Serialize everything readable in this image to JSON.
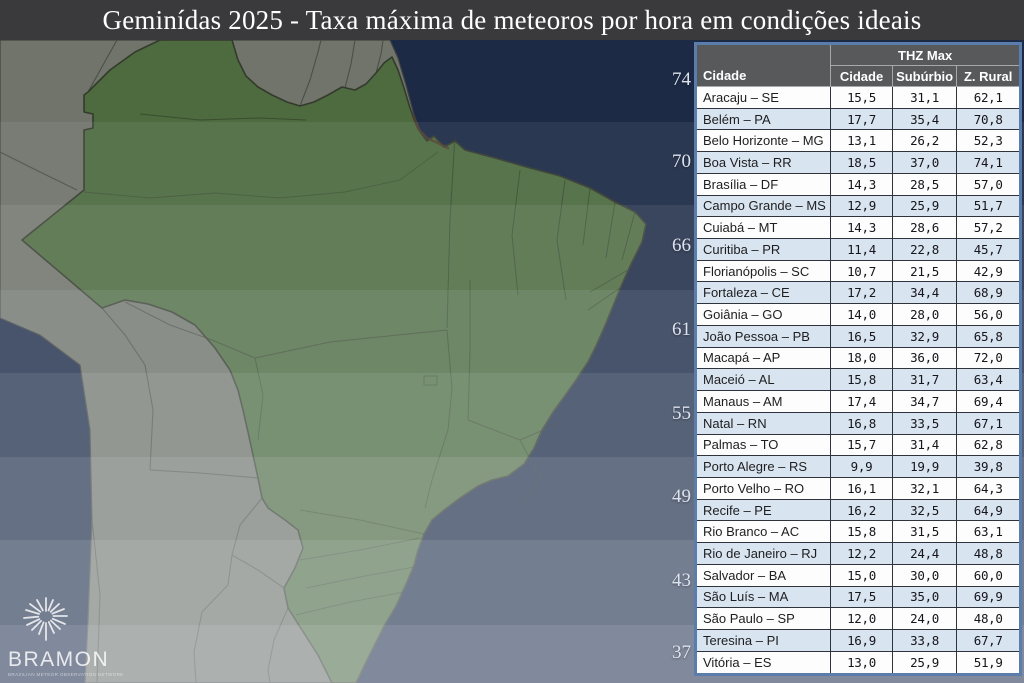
{
  "title": "Geminídas 2025 - Taxa máxima de meteoros por hora em condições ideais",
  "map": {
    "band_labels": [
      "74",
      "70",
      "66",
      "61",
      "55",
      "49",
      "43",
      "37"
    ]
  },
  "logo": {
    "name": "BRAMON",
    "tagline": "BRAZILIAN METEOR OBSERVATION NETWORK"
  },
  "table": {
    "group_header": "THZ Max",
    "city_header": "Cidade",
    "sub_columns": [
      "Cidade",
      "Subúrbio",
      "Z. Rural"
    ],
    "rows": [
      [
        "Aracaju – SE",
        "15,5",
        "31,1",
        "62,1"
      ],
      [
        "Belém – PA",
        "17,7",
        "35,4",
        "70,8"
      ],
      [
        "Belo Horizonte – MG",
        "13,1",
        "26,2",
        "52,3"
      ],
      [
        "Boa Vista – RR",
        "18,5",
        "37,0",
        "74,1"
      ],
      [
        "Brasília – DF",
        "14,3",
        "28,5",
        "57,0"
      ],
      [
        "Campo Grande – MS",
        "12,9",
        "25,9",
        "51,7"
      ],
      [
        "Cuiabá – MT",
        "14,3",
        "28,6",
        "57,2"
      ],
      [
        "Curitiba – PR",
        "11,4",
        "22,8",
        "45,7"
      ],
      [
        "Florianópolis – SC",
        "10,7",
        "21,5",
        "42,9"
      ],
      [
        "Fortaleza – CE",
        "17,2",
        "34,4",
        "68,9"
      ],
      [
        "Goiânia – GO",
        "14,0",
        "28,0",
        "56,0"
      ],
      [
        "João Pessoa – PB",
        "16,5",
        "32,9",
        "65,8"
      ],
      [
        "Macapá – AP",
        "18,0",
        "36,0",
        "72,0"
      ],
      [
        "Maceió – AL",
        "15,8",
        "31,7",
        "63,4"
      ],
      [
        "Manaus – AM",
        "17,4",
        "34,7",
        "69,4"
      ],
      [
        "Natal – RN",
        "16,8",
        "33,5",
        "67,1"
      ],
      [
        "Palmas – TO",
        "15,7",
        "31,4",
        "62,8"
      ],
      [
        "Porto Alegre – RS",
        "9,9",
        "19,9",
        "39,8"
      ],
      [
        "Porto Velho – RO",
        "16,1",
        "32,1",
        "64,3"
      ],
      [
        "Recife – PE",
        "16,2",
        "32,5",
        "64,9"
      ],
      [
        "Rio Branco – AC",
        "15,8",
        "31,5",
        "63,1"
      ],
      [
        "Rio de Janeiro – RJ",
        "12,2",
        "24,4",
        "48,8"
      ],
      [
        "Salvador – BA",
        "15,0",
        "30,0",
        "60,0"
      ],
      [
        "São Luís – MA",
        "17,5",
        "35,0",
        "69,9"
      ],
      [
        "São Paulo – SP",
        "12,0",
        "24,0",
        "48,0"
      ],
      [
        "Teresina – PI",
        "16,9",
        "33,8",
        "67,7"
      ],
      [
        "Vitória – ES",
        "13,0",
        "25,9",
        "51,9"
      ]
    ]
  },
  "colors": {
    "title_bar_bg": "#3a3a3c",
    "ocean": "#1d2a45",
    "brazil_green": "#4d6b3f",
    "land_gray": "#70746a",
    "table_outer_border": "#5b7dab",
    "table_header_bg": "#58595b",
    "row_alt_blue": "#d9e4f1"
  },
  "chart_data": {
    "type": "table",
    "title": "Geminídas 2025 - Taxa máxima de meteoros por hora em condições ideais",
    "columns": [
      "Cidade",
      "THZ Max Cidade",
      "THZ Max Subúrbio",
      "THZ Max Z. Rural"
    ],
    "rows": [
      [
        "Aracaju – SE",
        15.5,
        31.1,
        62.1
      ],
      [
        "Belém – PA",
        17.7,
        35.4,
        70.8
      ],
      [
        "Belo Horizonte – MG",
        13.1,
        26.2,
        52.3
      ],
      [
        "Boa Vista – RR",
        18.5,
        37.0,
        74.1
      ],
      [
        "Brasília – DF",
        14.3,
        28.5,
        57.0
      ],
      [
        "Campo Grande – MS",
        12.9,
        25.9,
        51.7
      ],
      [
        "Cuiabá – MT",
        14.3,
        28.6,
        57.2
      ],
      [
        "Curitiba – PR",
        11.4,
        22.8,
        45.7
      ],
      [
        "Florianópolis – SC",
        10.7,
        21.5,
        42.9
      ],
      [
        "Fortaleza – CE",
        17.2,
        34.4,
        68.9
      ],
      [
        "Goiânia – GO",
        14.0,
        28.0,
        56.0
      ],
      [
        "João Pessoa – PB",
        16.5,
        32.9,
        65.8
      ],
      [
        "Macapá – AP",
        18.0,
        36.0,
        72.0
      ],
      [
        "Maceió – AL",
        15.8,
        31.7,
        63.4
      ],
      [
        "Manaus – AM",
        17.4,
        34.7,
        69.4
      ],
      [
        "Natal – RN",
        16.8,
        33.5,
        67.1
      ],
      [
        "Palmas – TO",
        15.7,
        31.4,
        62.8
      ],
      [
        "Porto Alegre – RS",
        9.9,
        19.9,
        39.8
      ],
      [
        "Porto Velho – RO",
        16.1,
        32.1,
        64.3
      ],
      [
        "Recife – PE",
        16.2,
        32.5,
        64.9
      ],
      [
        "Rio Branco – AC",
        15.8,
        31.5,
        63.1
      ],
      [
        "Rio de Janeiro – RJ",
        12.2,
        24.4,
        48.8
      ],
      [
        "Salvador – BA",
        15.0,
        30.0,
        60.0
      ],
      [
        "São Luís – MA",
        17.5,
        35.0,
        69.9
      ],
      [
        "São Paulo – SP",
        12.0,
        24.0,
        48.0
      ],
      [
        "Teresina – PI",
        16.9,
        33.8,
        67.7
      ],
      [
        "Vitória – ES",
        13.0,
        25.9,
        51.9
      ]
    ],
    "map_band_scale": [
      74,
      70,
      66,
      61,
      55,
      49,
      43,
      37
    ],
    "legend_position": "left-of-table"
  }
}
